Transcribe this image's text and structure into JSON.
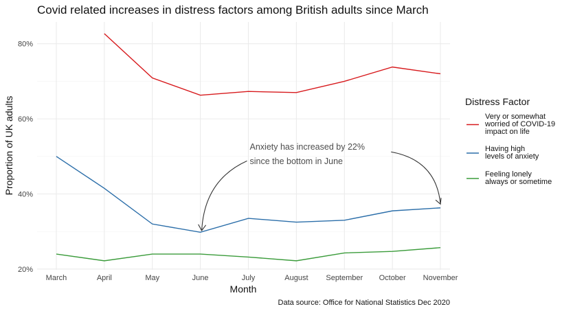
{
  "chart_data": {
    "type": "line",
    "title": "Covid related increases in distress factors among British adults since March",
    "xlabel": "Month",
    "ylabel": "Proportion of UK adults",
    "categories": [
      "March",
      "April",
      "May",
      "June",
      "July",
      "August",
      "September",
      "October",
      "November"
    ],
    "y_ticks": [
      20,
      40,
      60,
      80
    ],
    "y_tick_labels": [
      "20%",
      "40%",
      "60%",
      "80%"
    ],
    "ylim": [
      19.8,
      85.8
    ],
    "grid": true,
    "legend_position": "right",
    "legend_title": "Distress Factor",
    "series": [
      {
        "name": "Very or somewhat worried of COVID-19 impact on life",
        "legend_lines": [
          "Very or somewhat",
          "worried of COVID-19",
          "impact on life"
        ],
        "color": "#d7191c",
        "values": [
          null,
          82.7,
          70.9,
          66.3,
          67.3,
          67.0,
          70.0,
          73.8,
          72.0
        ]
      },
      {
        "name": "Having high levels of anxiety",
        "legend_lines": [
          "Having high",
          "levels of anxiety"
        ],
        "color": "#2b6ea9",
        "values": [
          50.0,
          41.5,
          32.0,
          29.8,
          33.5,
          32.5,
          33.0,
          35.5,
          36.3
        ]
      },
      {
        "name": "Feeling lonely always or sometime",
        "legend_lines": [
          "Feeling lonely",
          "always or sometime"
        ],
        "color": "#3a9b3a",
        "values": [
          24.0,
          22.2,
          24.0,
          24.0,
          23.2,
          22.2,
          24.3,
          24.7,
          25.7
        ]
      }
    ],
    "annotation": {
      "lines": [
        "Anxiety has increased by 22%",
        " since the bottom in June"
      ],
      "arrow_targets": [
        {
          "category": "June",
          "value": 30.8
        },
        {
          "category": "November",
          "value": 37.3
        }
      ],
      "arrow_origins": [
        {
          "category": "July",
          "value": 48.8
        },
        {
          "category": "October",
          "value": 51.2
        }
      ]
    },
    "caption": "Data source: Office for National Statistics Dec 2020"
  }
}
